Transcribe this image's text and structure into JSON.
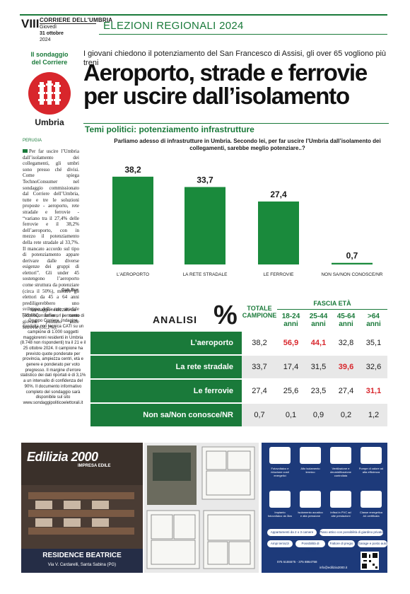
{
  "header": {
    "page_number": "VIII",
    "masthead": "CORRIERE DELL'UMBRIA",
    "weekday": "Giovedì",
    "date": "31 ottobre",
    "year": "2024",
    "section": "ELEZIONI REGIONALI 2024"
  },
  "badge": {
    "label_line1": "Il sondaggio",
    "label_line2": "del Corriere",
    "region": "Umbria"
  },
  "kicker": "I giovani chiedono il potenziamento del San Francesco di Assisi, gli over 65 vogliono più treni",
  "headline": "Aeroporto, strade e ferrovie per uscire dall’isolamento",
  "subhead": "Temi politici: potenziamento infrastrutture",
  "article": {
    "place": "PERUGIA",
    "body": "Per far uscire l’Umbria dall’isolamento dei collegamenti, gli umbri sono presso ché divisi. Come spiega TechnoConsumer nel sondaggio commissionato dal Corriere dell’Umbria, tutte e tre le soluzioni proposte - aeroporto, rete stradale e ferrovie - “variano tra il 27,4% delle ferrovie e il 38,2% dell’aeroporto, con in mezzo il potenziamento della rete stradale al 33,7%. Il mancato accordo sul tipo di potenziamento appare derivare dalle diverse esigenze dei gruppi di elettori”. Gli under 45 sostengono l’aeroporto come struttura da potenziare (circa il 50%), mentre gli elettori da 45 a 64 anni prediligerebbero uno sviluppo della rete stradale (39,6%). Infine, i meno giovani puntano sulle ferrovie (31,1%).",
    "byline": "Gab.Bur."
  },
  "chart_data": {
    "type": "bar",
    "title": "Parliamo adesso di infrastrutture in Umbria. Secondo lei, per far uscire l’Umbria dall’isolamento dei collegamenti, sarebbe meglio potenziare..?",
    "categories": [
      "L’AEROPORTO",
      "LA RETE STRADALE",
      "LE FERROVIE",
      "NON SA/NON CONOSCE/NR"
    ],
    "values": [
      38.2,
      33.7,
      27.4,
      0.7
    ],
    "value_labels": [
      "38,2",
      "33,7",
      "27,4",
      "0,7"
    ],
    "bar_color": "#1a8a3c",
    "ylim": [
      0,
      40
    ],
    "grid": false
  },
  "methodology": "Sondaggio realizzato da TechnoConsumer srl per conto di Gruppo Corriere. Indagine condotta con tecnica CATI su un campione di 1.000 soggetti maggiorenni residenti in Umbria (8.748 non rispondenti) tra il 21 e il 25 ottobre 2024. Il campione ha previsto quote ponderate per provincia, ampiezza centri, età e genere e ponderato per voto pregresso. Il margine d’errore statistico dei dati riportati è di 3,1% a un intervallo di confidenza del 90%. Il documento informativo completo del sondaggio sarà disponibile sul sito www.sondaggipoliticoelettorali.it",
  "analysis": {
    "title": "ANALISI",
    "percent_symbol": "%",
    "col_total": "TOTALE CAMPIONE",
    "col_group": "FASCIA ETÀ",
    "age_cols": [
      "18-24 anni",
      "25-44 anni",
      "45-64 anni",
      ">64 anni"
    ],
    "rows": [
      {
        "label": "L’aeroporto",
        "total": "38,2",
        "ages": [
          "56,9",
          "44,1",
          "32,8",
          "35,1"
        ],
        "highlight": [
          0,
          1
        ]
      },
      {
        "label": "La rete stradale",
        "total": "33,7",
        "ages": [
          "17,4",
          "31,5",
          "39,6",
          "32,6"
        ],
        "highlight": [
          2
        ]
      },
      {
        "label": "Le ferrovie",
        "total": "27,4",
        "ages": [
          "25,6",
          "23,5",
          "27,4",
          "31,1"
        ],
        "highlight": [
          3
        ]
      },
      {
        "label": "Non sa/Non conosce/NR",
        "total": "0,7",
        "ages": [
          "0,1",
          "0,9",
          "0,2",
          "1,2"
        ],
        "highlight": []
      }
    ],
    "highlight_color": "#d8262c"
  },
  "ad": {
    "brand": "Edilizia 2000",
    "brand_sub": "IMPRESA EDILE",
    "residence": "RESIDENCE BEATRICE",
    "address": "Via V. Cardarelli, Santa Sabina (PG)",
    "features": [
      "Fotovoltaico e riduzione costi energetici",
      "Alto isolamento termico",
      "Ventilazione e deumidificazione controllata",
      "Pompe di calore ad alta efficienza",
      "Impianto fotovoltaico da 3kw",
      "Isolamento acustico e alta pressione",
      "Infissi in PVC ad alte prestazioni",
      "Classe energetica A4 certificata"
    ],
    "pills": [
      "Appartamenti da 2 o 3 camere",
      "Piano attico con possibilità di giardino privato",
      "Ampi terrazzi",
      "Possibilità di giardino",
      "Fattore di pregio",
      "Garage e posto auto"
    ],
    "phone": "075 5155575 - 375 8864758",
    "email": "info@edilizia2000.it"
  }
}
